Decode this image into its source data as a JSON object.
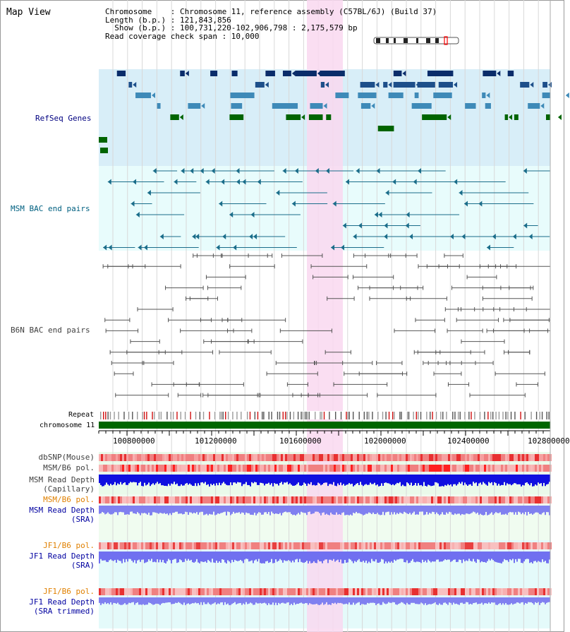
{
  "title": "Map View",
  "info": {
    "line1": "Chromosome    : Chromosome 11, reference assembly (C57BL/6J) (Build 37)",
    "line2": "Length (b.p.) : 121,843,856",
    "line3": "  Show (b.p.) : 100,731,220-102,906,798 : 2,175,579 bp",
    "line4": "Read coverage check span : 10,000"
  },
  "tracks": {
    "refseq": "RefSeq Genes",
    "msm_bac": "MSM BAC end pairs",
    "b6n_bac": "B6N BAC end pairs",
    "repeat": "Repeat",
    "chromosome": "chromosome 11",
    "dbsnp": "dbSNP(Mouse)",
    "msm_b6_pol": "MSM/B6 pol.",
    "msm_depth_cap1": "MSM Read Depth",
    "msm_depth_cap2": "(Capillary)",
    "msm_b6_pol2": "MSM/B6 pol.",
    "msm_depth_sra1": "MSM Read Depth",
    "msm_depth_sra2": "(SRA)",
    "jf1_pol": "JF1/B6 pol.",
    "jf1_depth1": "JF1 Read Depth",
    "jf1_depth2": "(SRA)",
    "jf1_pol2": "JF1/B6 pol.",
    "jf1_trim1": "JF1 Read Depth",
    "jf1_trim2": "(SRA trimmed)"
  },
  "axis": {
    "ticks": [
      "100800000",
      "101200000",
      "101600000",
      "102000000",
      "102400000",
      "102800000"
    ]
  },
  "colors": {
    "highlight": "#f9d8f0",
    "refseq_bg": "#d8eef8",
    "bac_bg": "#e4fafa",
    "refseq_label": "#000080",
    "msm_label": "#006080",
    "pol_label": "#e08000",
    "depth_label": "#0000a0",
    "chrom_bar": "#006600"
  }
}
